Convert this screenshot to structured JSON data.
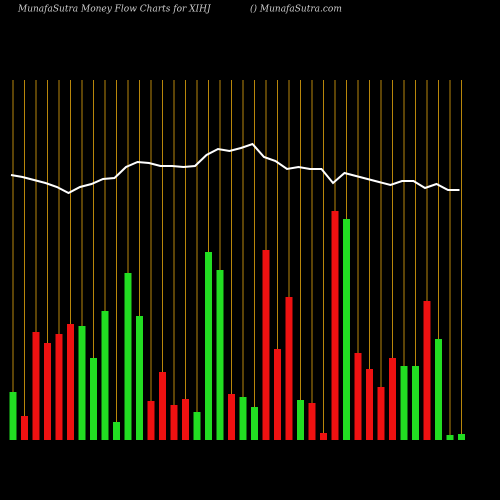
{
  "chart_data": {
    "type": "bar",
    "title": "MunafaSutra  Money Flow  Charts for XIHJ",
    "subtitle": "() MunafaSutra.com",
    "values": [
      48,
      24,
      108,
      97,
      106,
      116,
      114,
      82,
      129,
      18,
      167,
      124,
      39,
      68,
      35,
      41,
      28,
      188,
      170,
      46,
      43,
      33,
      190,
      91,
      143,
      40,
      37,
      7,
      229,
      221,
      87,
      71,
      53,
      82,
      74,
      74,
      139,
      101,
      5,
      6
    ],
    "colors": [
      "#22dd22",
      "#ee1111",
      "#ee1111",
      "#ee1111",
      "#ee1111",
      "#ee1111",
      "#22dd22",
      "#22dd22",
      "#22dd22",
      "#22dd22",
      "#22dd22",
      "#22dd22",
      "#ee1111",
      "#ee1111",
      "#ee1111",
      "#ee1111",
      "#22dd22",
      "#22dd22",
      "#22dd22",
      "#ee1111",
      "#22dd22",
      "#22dd22",
      "#ee1111",
      "#ee1111",
      "#ee1111",
      "#22dd22",
      "#ee1111",
      "#ee1111",
      "#ee1111",
      "#22dd22",
      "#ee1111",
      "#ee1111",
      "#ee1111",
      "#ee1111",
      "#22dd22",
      "#22dd22",
      "#ee1111",
      "#22dd22",
      "#22dd22",
      "#22dd22"
    ],
    "line": {
      "color": "#ffffff",
      "values": [
        265,
        263,
        260,
        257,
        253,
        247,
        253,
        256,
        261,
        262,
        273,
        278,
        277,
        274,
        274,
        273,
        274,
        285,
        291,
        289,
        292,
        296,
        283,
        279,
        271,
        273,
        271,
        271,
        257,
        267,
        264,
        261,
        258,
        255,
        259,
        259,
        252,
        256,
        250,
        250
      ]
    },
    "ylim": [
      0,
      360
    ]
  }
}
